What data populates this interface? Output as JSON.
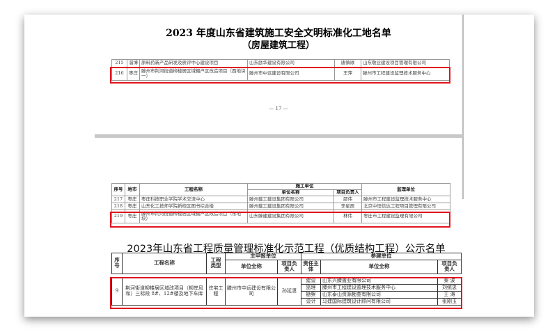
{
  "doc1": {
    "title": "2023 年度山东省建筑施工安全文明标准化工地名单",
    "subtitle": "（房屋建筑工程）",
    "rows": [
      {
        "no": "215",
        "city": "淄博",
        "project": "原料药新产品研发及质评中心建设项目",
        "company": "山东励华建设有限公司",
        "manager": "唐慎顺",
        "supervisor": "山东敬业建设项目管理有限公司"
      },
      {
        "no": "216",
        "city": "枣庄",
        "project": "滕州市荆河街道柳楼居区域棚户区改造项目（西地块一）",
        "company": "滕州市中远建设有限公司",
        "manager": "王萍",
        "supervisor": "滕州市工程建设监理技术服务中心"
      }
    ],
    "page_number": "— 17 —"
  },
  "doc2": {
    "headers": {
      "no": "序号",
      "city": "地市",
      "project": "工程名称",
      "builder": "施工单位",
      "company": "单位名称",
      "manager": "项目负责人",
      "supervisor": "监理单位"
    },
    "rows": [
      {
        "no": "217",
        "city": "枣庄",
        "project": "枣庄科技职业学院学术交流中心",
        "company": "滕州建工建设集团有限公司",
        "manager": "邵伟",
        "supervisor": "滕州市工程建设监理技术服务中心"
      },
      {
        "no": "218",
        "city": "枣庄",
        "project": "山东化工技师学院新校区图书综合楼",
        "company": "滕州建工建设集团有限公司",
        "manager": "李星辰",
        "supervisor": "北京中恒信达工程项目管理有限公司"
      },
      {
        "no": "219",
        "city": "枣庄",
        "project": "滕州市荆河街道柳楼居区域棚户区改造项目（东地块）",
        "company": "山东滕建建设集团有限公司",
        "manager": "林伟",
        "supervisor": "枣庄市工程建设监理有限公司"
      }
    ]
  },
  "doc3": {
    "title": "2023年山东省工程质量管理标准化示范工程（优质结构工程）公示名单",
    "headers": {
      "no": "序号",
      "project": "工程名称",
      "type": "工程类型",
      "main": "主申报单位",
      "main_company": "单位全称",
      "main_manager": "项目负责人",
      "partners": "参建单位",
      "role": "责任主体",
      "partner_company": "单位全称",
      "partner_manager": "项目负责人"
    },
    "row": {
      "no": "9",
      "project": "荆河街道柳楼居区域改项目（柳岸风和）三标段 8#、12#楼及地下车库",
      "type": "住宅工程",
      "company": "滕州市中远建设有限公司",
      "manager": "孙延潇",
      "partners": [
        {
          "role": "建设",
          "company": "山东兴滕置业有限公司",
          "manager": "秦 波"
        },
        {
          "role": "监理",
          "company": "滕州市工程建设监理技术服务中心",
          "manager": "刘统忠"
        },
        {
          "role": "勘察",
          "company": "山东泰山资源勘查有限公司",
          "manager": "王 涛"
        },
        {
          "role": "设计",
          "company": "马建国际建筑设计顾问有限公司",
          "manager": "张刚玉"
        }
      ]
    }
  },
  "colors": {
    "highlight": "#e0141e"
  }
}
